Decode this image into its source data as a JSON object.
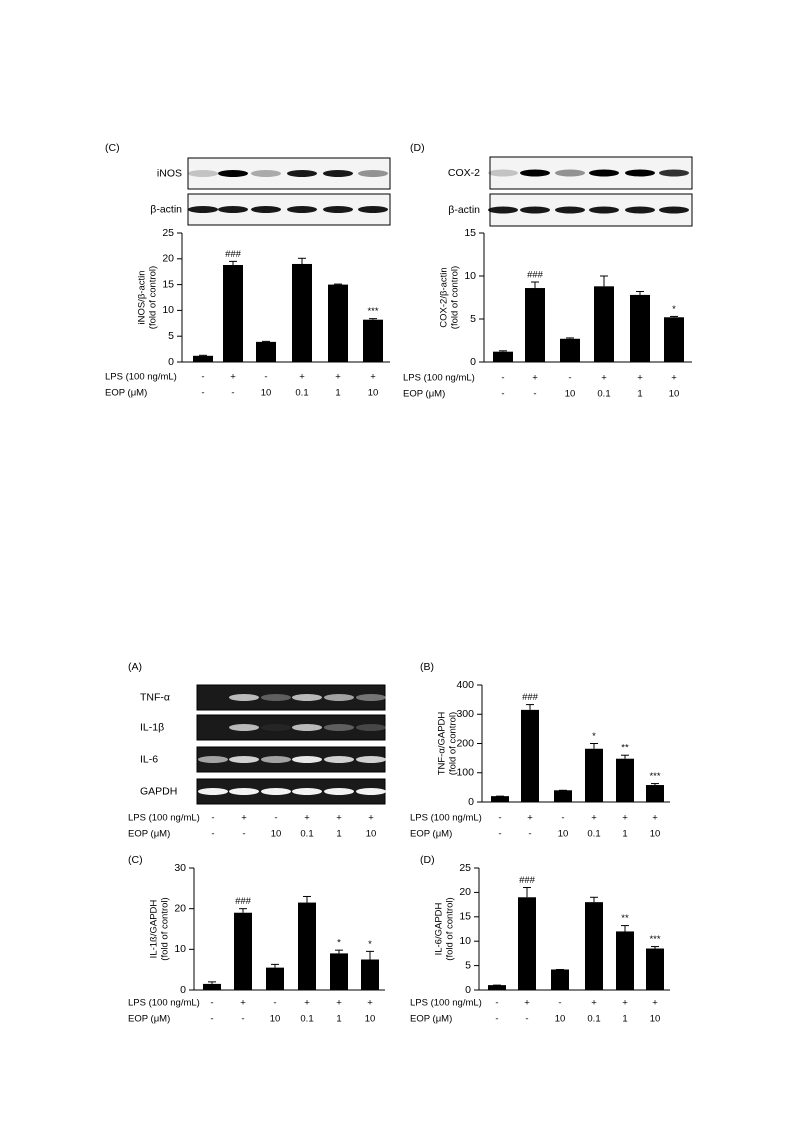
{
  "chart_data": [
    {
      "type": "bar",
      "panel": "(C)",
      "blots": [
        "iNOS",
        "β-actin"
      ],
      "ylabel": [
        "iNOS/β-actin",
        "(fold of control)"
      ],
      "treatments": [
        {
          "name": "LPS (100 ng/mL)",
          "levels": [
            "-",
            "+",
            "-",
            "+",
            "+",
            "+"
          ]
        },
        {
          "name": "EOP (μM)",
          "levels": [
            "-",
            "-",
            "10",
            "0.1",
            "1",
            "10"
          ]
        }
      ],
      "values": [
        1.2,
        18.8,
        3.9,
        19.0,
        15.0,
        8.2
      ],
      "errors": [
        0.1,
        0.7,
        0.1,
        1.1,
        0.1,
        0.2
      ],
      "annotations": [
        null,
        "###",
        null,
        null,
        null,
        "***"
      ],
      "color": "#000000",
      "ylim": [
        0,
        25
      ],
      "yticks": [
        0,
        5,
        10,
        15,
        20,
        25
      ]
    },
    {
      "type": "bar",
      "panel": "(D)",
      "blots": [
        "COX-2",
        "β-actin"
      ],
      "ylabel": [
        "COX-2/β-actin",
        "(fold of control)"
      ],
      "treatments": [
        {
          "name": "LPS (100 ng/mL)",
          "levels": [
            "-",
            "+",
            "-",
            "+",
            "+",
            "+"
          ]
        },
        {
          "name": "EOP (μM)",
          "levels": [
            "-",
            "-",
            "10",
            "0.1",
            "1",
            "10"
          ]
        }
      ],
      "values": [
        1.2,
        8.6,
        2.7,
        8.8,
        7.8,
        5.2
      ],
      "errors": [
        0.1,
        0.7,
        0.1,
        1.2,
        0.4,
        0.1
      ],
      "annotations": [
        null,
        "###",
        null,
        null,
        null,
        "*"
      ],
      "color": "#000000",
      "ylim": [
        0,
        15
      ],
      "yticks": [
        0,
        5,
        10,
        15
      ]
    },
    {
      "type": "bar",
      "panel": "(B)",
      "ylabel": [
        "TNF-α/GAPDH",
        "(fold of control)"
      ],
      "treatments": [
        {
          "name": "LPS (100 ng/mL)",
          "levels": [
            "-",
            "+",
            "-",
            "+",
            "+",
            "+"
          ]
        },
        {
          "name": "EOP (μM)",
          "levels": [
            "-",
            "-",
            "10",
            "0.1",
            "1",
            "10"
          ]
        }
      ],
      "values": [
        20,
        315,
        40,
        182,
        148,
        58
      ],
      "errors": [
        0,
        18,
        0,
        18,
        12,
        5
      ],
      "annotations": [
        null,
        "###",
        null,
        "*",
        "**",
        "***"
      ],
      "color": "#000000",
      "ylim": [
        0,
        400
      ],
      "yticks": [
        0,
        100,
        200,
        300,
        400
      ]
    },
    {
      "type": "bar",
      "panel": "(C)",
      "ylabel": [
        "IL-1ß/GAPDH",
        "(fold of control)"
      ],
      "treatments": [
        {
          "name": "LPS (100 ng/mL)",
          "levels": [
            "-",
            "+",
            "-",
            "+",
            "+",
            "+"
          ]
        },
        {
          "name": "EOP (μM)",
          "levels": [
            "-",
            "-",
            "10",
            "0.1",
            "1",
            "10"
          ]
        }
      ],
      "values": [
        1.5,
        19,
        5.5,
        21.5,
        9,
        7.5
      ],
      "errors": [
        0.5,
        1,
        0.8,
        1.5,
        0.8,
        2
      ],
      "annotations": [
        null,
        "###",
        null,
        null,
        "*",
        "*"
      ],
      "color": "#000000",
      "ylim": [
        0,
        30
      ],
      "yticks": [
        0,
        10,
        20,
        30
      ]
    },
    {
      "type": "bar",
      "panel": "(D)",
      "ylabel": [
        "IL-6/GAPDH",
        "(fold of control)"
      ],
      "treatments": [
        {
          "name": "LPS (100 ng/mL)",
          "levels": [
            "-",
            "+",
            "-",
            "+",
            "+",
            "+"
          ]
        },
        {
          "name": "EOP (μM)",
          "levels": [
            "-",
            "-",
            "10",
            "0.1",
            "1",
            "10"
          ]
        }
      ],
      "values": [
        1,
        19,
        4.2,
        18,
        12,
        8.5
      ],
      "errors": [
        0,
        2,
        0,
        1,
        1.2,
        0.4
      ],
      "annotations": [
        null,
        "###",
        null,
        null,
        "**",
        "***"
      ],
      "color": "#000000",
      "ylim": [
        0,
        25
      ],
      "yticks": [
        0,
        5,
        10,
        15,
        20,
        25
      ]
    }
  ],
  "blot_panel": {
    "panel": "(A)",
    "blots": [
      "TNF-α",
      "IL-1β",
      "IL-6",
      "GAPDH"
    ],
    "treatments": [
      {
        "name": "LPS (100 ng/mL)",
        "levels": [
          "-",
          "+",
          "-",
          "+",
          "+",
          "+"
        ]
      },
      {
        "name": "EOP (μM)",
        "levels": [
          "-",
          "-",
          "10",
          "0.1",
          "1",
          "10"
        ]
      }
    ]
  }
}
